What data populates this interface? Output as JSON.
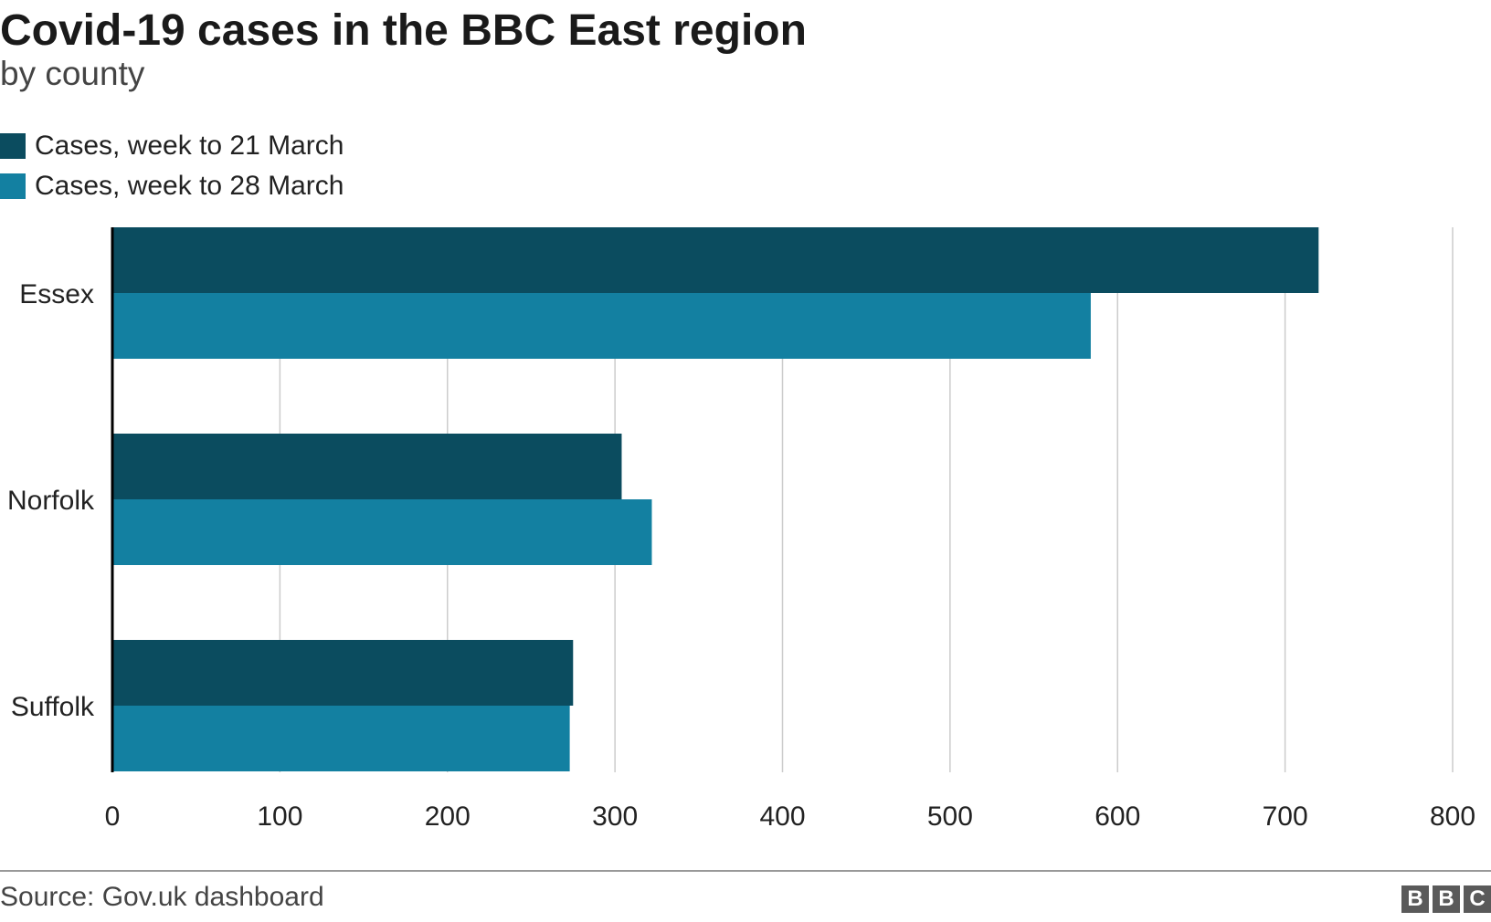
{
  "title": "Covid-19 cases in the BBC East region",
  "subtitle": "by county",
  "source": "Source: Gov.uk dashboard",
  "logo": [
    "B",
    "B",
    "C"
  ],
  "colors": {
    "series1": "#0b4c5f",
    "series2": "#1380a1",
    "grid": "#cccccc",
    "axis": "#000000"
  },
  "chart_data": {
    "type": "bar",
    "orientation": "horizontal",
    "categories": [
      "Essex",
      "Norfolk",
      "Suffolk"
    ],
    "series": [
      {
        "name": "Cases, week to 21 March",
        "values": [
          720,
          304,
          275
        ]
      },
      {
        "name": "Cases, week to 28 March",
        "values": [
          584,
          322,
          273
        ]
      }
    ],
    "xlim": [
      0,
      800
    ],
    "xticks": [
      "0",
      "100",
      "200",
      "300",
      "400",
      "500",
      "600",
      "700",
      "800"
    ],
    "grid": true,
    "legend": "top-left"
  }
}
